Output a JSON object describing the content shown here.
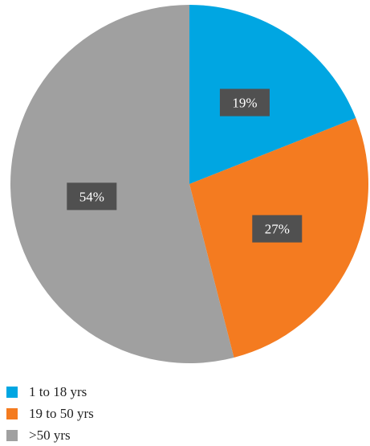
{
  "chart_data": {
    "type": "pie",
    "slices": [
      {
        "label": "1 to 18 yrs",
        "value": 19,
        "display": "19%",
        "color": "#00a6e2"
      },
      {
        "label": "19 to 50 yrs",
        "value": 27,
        "display": "27%",
        "color": "#f47b20"
      },
      {
        "label": ">50 yrs",
        "value": 54,
        "display": "54%",
        "color": "#a0a0a0"
      }
    ],
    "data_label_box_color": "#505050",
    "legend_position": "bottom-left"
  }
}
